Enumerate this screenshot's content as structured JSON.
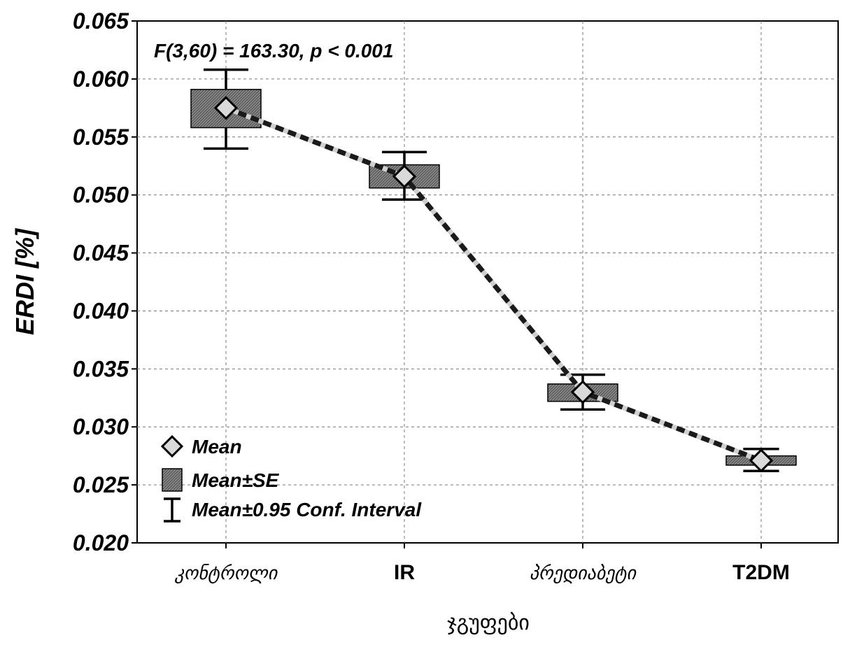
{
  "chart_data": {
    "type": "line",
    "categories": [
      "კონტროლი",
      "IR",
      "პრედიაბეტი",
      "T2DM"
    ],
    "series": [
      {
        "name": "Mean",
        "values": [
          0.0575,
          0.0516,
          0.033,
          0.0271
        ]
      }
    ],
    "se": {
      "lower": [
        0.0558,
        0.0506,
        0.0322,
        0.0267
      ],
      "upper": [
        0.0591,
        0.0526,
        0.0337,
        0.0275
      ]
    },
    "ci95": {
      "lower": [
        0.054,
        0.0496,
        0.0315,
        0.0262
      ],
      "upper": [
        0.0608,
        0.0537,
        0.0345,
        0.0281
      ]
    },
    "ylabel": "ERDI [%]",
    "xlabel": "ჯგუფები",
    "ylim": [
      0.02,
      0.065
    ],
    "yticks": [
      "0.020",
      "0.025",
      "0.030",
      "0.035",
      "0.040",
      "0.045",
      "0.050",
      "0.055",
      "0.060",
      "0.065"
    ],
    "annotation": "F(3,60) = 163.30, p < 0.001",
    "grid": true,
    "legend": {
      "placement": "bottom-left",
      "items": [
        {
          "label": "Mean",
          "icon": "diamond-marker-icon"
        },
        {
          "label": "Mean±SE",
          "icon": "hatched-box-icon"
        },
        {
          "label": "Mean±0.95 Conf. Interval",
          "icon": "whisker-icon"
        }
      ]
    },
    "colors": {
      "marker_fill": "#d9d9d9",
      "box_fill": "#7a7a7a",
      "line_dark": "#1a1a1a",
      "line_light": "#cfcfcf"
    }
  }
}
